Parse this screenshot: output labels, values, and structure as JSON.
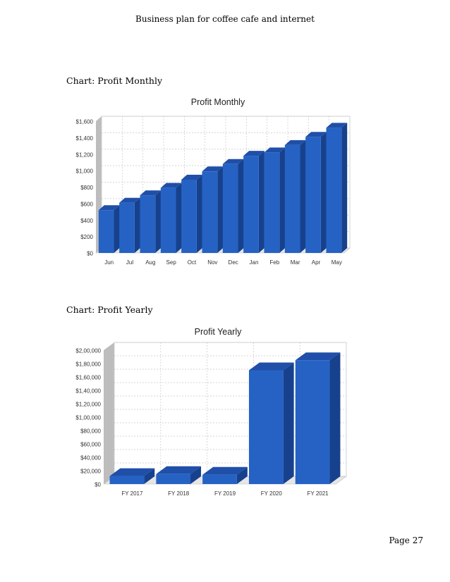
{
  "header": {
    "title": "Business plan for coffee cafe and internet"
  },
  "captions": {
    "monthly": "Chart: Profit Monthly",
    "yearly": "Chart: Profit Yearly"
  },
  "footer": {
    "page": "Page 27"
  },
  "colors": {
    "bar_front": "#2562c4",
    "bar_top": "#1f4fa8",
    "bar_side": "#17418c",
    "grid": "#c8c8c8",
    "wall": "#bdbdbd"
  },
  "chart_data": [
    {
      "type": "bar",
      "title": "Profit Monthly",
      "categories": [
        "Jun",
        "Jul",
        "Aug",
        "Sep",
        "Oct",
        "Nov",
        "Dec",
        "Jan",
        "Feb",
        "Mar",
        "Apr",
        "May"
      ],
      "values": [
        520,
        610,
        700,
        790,
        890,
        990,
        1080,
        1180,
        1220,
        1310,
        1410,
        1520
      ],
      "yticks": [
        "$0",
        "$200",
        "$400",
        "$600",
        "$800",
        "$1,000",
        "$1,200",
        "$1,400",
        "$1,600"
      ],
      "ylim": [
        0,
        1600
      ],
      "grid": true
    },
    {
      "type": "bar",
      "title": "Profit Yearly",
      "categories": [
        "FY 2017",
        "FY 2018",
        "FY 2019",
        "FY 2020",
        "FY 2021"
      ],
      "values": [
        12000,
        15000,
        14000,
        170000,
        185000
      ],
      "yticks": [
        "$0",
        "$20,000",
        "$40,000",
        "$60,000",
        "$80,000",
        "$1,00,000",
        "$1,20,000",
        "$1,40,000",
        "$1,60,000",
        "$1,80,000",
        "$2,00,000"
      ],
      "ylim": [
        0,
        200000
      ],
      "grid": true
    }
  ]
}
